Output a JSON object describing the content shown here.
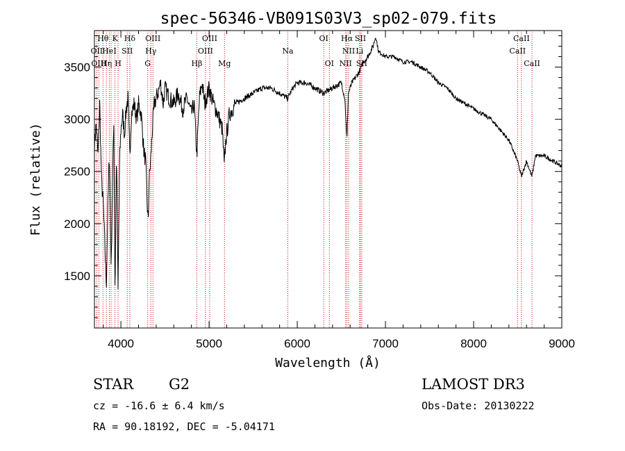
{
  "chart_data": {
    "type": "line",
    "title": "spec-56346-VB091S03V3_sp02-079.fits",
    "xlabel": "Wavelength (Å)",
    "ylabel": "Flux (relative)",
    "xlim": [
      3700,
      9000
    ],
    "ylim": [
      1000,
      3850
    ],
    "x_ticks": [
      4000,
      5000,
      6000,
      7000,
      8000,
      9000
    ],
    "y_ticks": [
      1500,
      2000,
      2500,
      3000,
      3500
    ],
    "grid": false,
    "spectrum_color": "#000000",
    "line_marker_color": "#cc0000",
    "spectrum_nodes": [
      [
        3700,
        2750
      ],
      [
        3720,
        2950
      ],
      [
        3740,
        2650
      ],
      [
        3760,
        3150
      ],
      [
        3780,
        2400
      ],
      [
        3800,
        2200
      ],
      [
        3820,
        1750
      ],
      [
        3835,
        1400
      ],
      [
        3850,
        2100
      ],
      [
        3870,
        2700
      ],
      [
        3890,
        1550
      ],
      [
        3905,
        2400
      ],
      [
        3920,
        3000
      ],
      [
        3933,
        1300
      ],
      [
        3950,
        2700
      ],
      [
        3968,
        1350
      ],
      [
        3985,
        2600
      ],
      [
        4000,
        2900
      ],
      [
        4020,
        3050
      ],
      [
        4040,
        2850
      ],
      [
        4060,
        3100
      ],
      [
        4080,
        3200
      ],
      [
        4101,
        2650
      ],
      [
        4120,
        3050
      ],
      [
        4150,
        3150
      ],
      [
        4180,
        3000
      ],
      [
        4200,
        3150
      ],
      [
        4230,
        3050
      ],
      [
        4260,
        2700
      ],
      [
        4280,
        2600
      ],
      [
        4300,
        2150
      ],
      [
        4310,
        2000
      ],
      [
        4320,
        2400
      ],
      [
        4340,
        2650
      ],
      [
        4360,
        2950
      ],
      [
        4380,
        3150
      ],
      [
        4420,
        3250
      ],
      [
        4450,
        3350
      ],
      [
        4480,
        3150
      ],
      [
        4500,
        3300
      ],
      [
        4550,
        3200
      ],
      [
        4600,
        3150
      ],
      [
        4650,
        3250
      ],
      [
        4700,
        3100
      ],
      [
        4750,
        3200
      ],
      [
        4800,
        3050
      ],
      [
        4830,
        3150
      ],
      [
        4861,
        2650
      ],
      [
        4890,
        3200
      ],
      [
        4920,
        3350
      ],
      [
        4950,
        3150
      ],
      [
        5000,
        3300
      ],
      [
        5050,
        3150
      ],
      [
        5100,
        3050
      ],
      [
        5150,
        2900
      ],
      [
        5172,
        2550
      ],
      [
        5190,
        2800
      ],
      [
        5230,
        3050
      ],
      [
        5300,
        3150
      ],
      [
        5400,
        3200
      ],
      [
        5500,
        3250
      ],
      [
        5600,
        3300
      ],
      [
        5700,
        3300
      ],
      [
        5800,
        3250
      ],
      [
        5890,
        3200
      ],
      [
        5950,
        3300
      ],
      [
        6000,
        3350
      ],
      [
        6100,
        3350
      ],
      [
        6200,
        3300
      ],
      [
        6300,
        3250
      ],
      [
        6400,
        3300
      ],
      [
        6500,
        3350
      ],
      [
        6540,
        3200
      ],
      [
        6563,
        2800
      ],
      [
        6580,
        3250
      ],
      [
        6620,
        3350
      ],
      [
        6700,
        3450
      ],
      [
        6750,
        3550
      ],
      [
        6800,
        3600
      ],
      [
        6860,
        3700
      ],
      [
        6890,
        3800
      ],
      [
        6920,
        3650
      ],
      [
        7000,
        3600
      ],
      [
        7100,
        3600
      ],
      [
        7200,
        3550
      ],
      [
        7300,
        3550
      ],
      [
        7400,
        3500
      ],
      [
        7500,
        3450
      ],
      [
        7600,
        3350
      ],
      [
        7700,
        3300
      ],
      [
        7800,
        3200
      ],
      [
        7900,
        3150
      ],
      [
        8000,
        3100
      ],
      [
        8100,
        3050
      ],
      [
        8200,
        3000
      ],
      [
        8300,
        2900
      ],
      [
        8400,
        2800
      ],
      [
        8498,
        2600
      ],
      [
        8542,
        2450
      ],
      [
        8600,
        2600
      ],
      [
        8662,
        2450
      ],
      [
        8700,
        2650
      ],
      [
        8800,
        2650
      ],
      [
        8900,
        2600
      ],
      [
        9000,
        2550
      ]
    ],
    "lines": [
      {
        "wl": 3726,
        "row": 1,
        "label": "OII"
      },
      {
        "wl": 3750,
        "row": 2,
        "label": "OIII"
      },
      {
        "wl": 3797,
        "row": 0,
        "label": "Hθ"
      },
      {
        "wl": 3835,
        "row": 2,
        "label": "Hη"
      },
      {
        "wl": 3869,
        "row": 1,
        "label": "HeI"
      },
      {
        "wl": 3889,
        "row": 0,
        "label": ""
      },
      {
        "wl": 3933,
        "row": 0,
        "label": "K"
      },
      {
        "wl": 3968,
        "row": 2,
        "label": "H"
      },
      {
        "wl": 4072,
        "row": 1,
        "label": "SII"
      },
      {
        "wl": 4101,
        "row": 0,
        "label": "Hδ"
      },
      {
        "wl": 4304,
        "row": 2,
        "label": "G"
      },
      {
        "wl": 4340,
        "row": 1,
        "label": "Hγ"
      },
      {
        "wl": 4363,
        "row": 0,
        "label": "OIII"
      },
      {
        "wl": 4861,
        "row": 2,
        "label": "Hβ"
      },
      {
        "wl": 4959,
        "row": 1,
        "label": "OIII"
      },
      {
        "wl": 5007,
        "row": 0,
        "label": "OIII"
      },
      {
        "wl": 5175,
        "row": 2,
        "label": "Mg"
      },
      {
        "wl": 5893,
        "row": 1,
        "label": "Na"
      },
      {
        "wl": 6300,
        "row": 0,
        "label": "OI"
      },
      {
        "wl": 6364,
        "row": 2,
        "label": "OI"
      },
      {
        "wl": 6548,
        "row": 2,
        "label": "NII"
      },
      {
        "wl": 6563,
        "row": 0,
        "label": "Hα"
      },
      {
        "wl": 6583,
        "row": 1,
        "label": "NII"
      },
      {
        "wl": 6707,
        "row": 1,
        "label": "Li"
      },
      {
        "wl": 6716,
        "row": 0,
        "label": "SII"
      },
      {
        "wl": 6731,
        "row": 2,
        "label": "SII"
      },
      {
        "wl": 8498,
        "row": 1,
        "label": "CaII"
      },
      {
        "wl": 8542,
        "row": 0,
        "label": "CaII"
      },
      {
        "wl": 8662,
        "row": 2,
        "label": "CaII"
      }
    ]
  },
  "info": {
    "object_class": "STAR",
    "subclass": "G2",
    "survey": "LAMOST DR3",
    "redshift": "cz = -16.6 ± 6.4 km/s",
    "obs_date": "Obs-Date: 20130222",
    "coords": "RA =  90.18192, DEC =  -5.04171"
  }
}
